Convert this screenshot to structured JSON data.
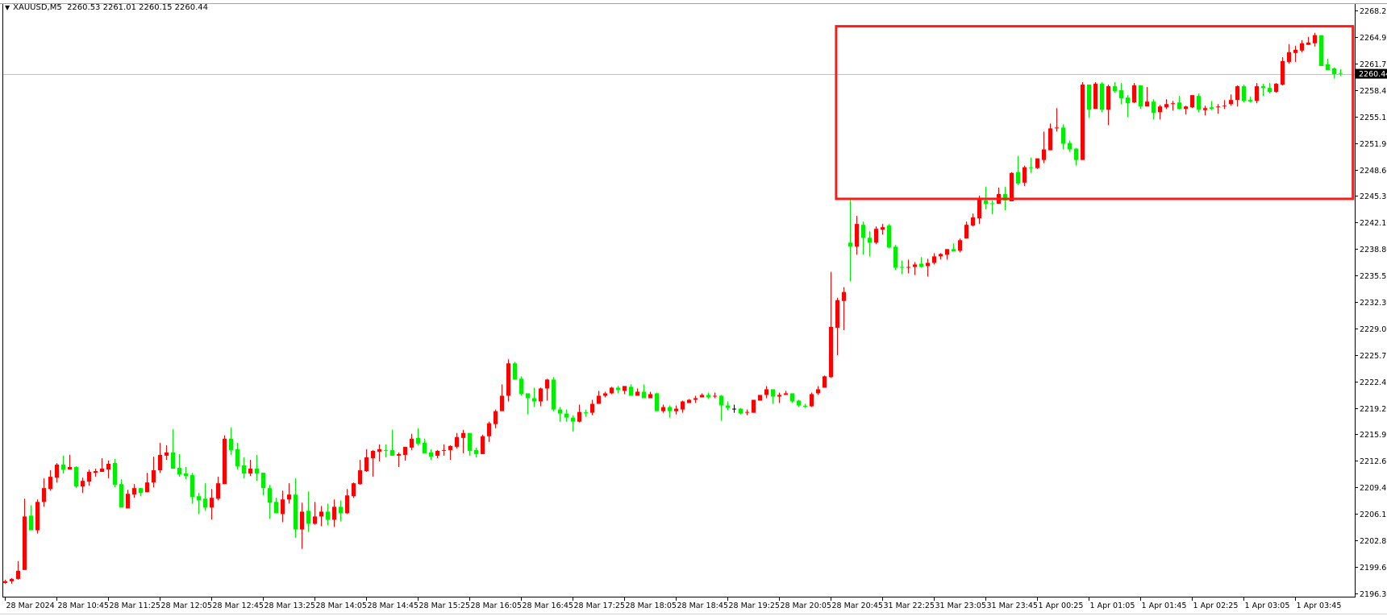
{
  "header": {
    "symbol": "XAUUSD,M5",
    "ohlc": "2260.53 2261.01 2260.15 2260.44",
    "menu_icon": "triangle-down-icon"
  },
  "colors": {
    "bull": "#ff0000",
    "bear": "#00ee00",
    "doji": "#000000",
    "background": "#ffffff",
    "annotation": "#ff1a1a",
    "current_price_line": "#c0c0c0"
  },
  "chart_data": {
    "type": "candlestick",
    "symbol": "XAUUSD",
    "timeframe": "M5",
    "ylim": [
      2196.3,
      2268.25
    ],
    "grid": false,
    "y_ticks": [
      "2268.25",
      "2264.95",
      "2261.70",
      "2258.45",
      "2255.15",
      "2251.90",
      "2248.60",
      "2245.35",
      "2242.10",
      "2238.80",
      "2235.55",
      "2232.30",
      "2229.00",
      "2225.75",
      "2222.45",
      "2219.20",
      "2215.95",
      "2212.65",
      "2209.40",
      "2206.15",
      "2202.85",
      "2199.60",
      "2196.30"
    ],
    "x_ticks": [
      {
        "bar": 0,
        "label": "28 Mar 2024"
      },
      {
        "bar": 8,
        "label": "28 Mar 10:45"
      },
      {
        "bar": 16,
        "label": "28 Mar 11:25"
      },
      {
        "bar": 24,
        "label": "28 Mar 12:05"
      },
      {
        "bar": 32,
        "label": "28 Mar 12:45"
      },
      {
        "bar": 40,
        "label": "28 Mar 13:25"
      },
      {
        "bar": 48,
        "label": "28 Mar 14:05"
      },
      {
        "bar": 56,
        "label": "28 Mar 14:45"
      },
      {
        "bar": 64,
        "label": "28 Mar 15:25"
      },
      {
        "bar": 72,
        "label": "28 Mar 16:05"
      },
      {
        "bar": 80,
        "label": "28 Mar 16:45"
      },
      {
        "bar": 88,
        "label": "28 Mar 17:25"
      },
      {
        "bar": 96,
        "label": "28 Mar 18:05"
      },
      {
        "bar": 104,
        "label": "28 Mar 18:45"
      },
      {
        "bar": 112,
        "label": "28 Mar 19:25"
      },
      {
        "bar": 120,
        "label": "28 Mar 20:05"
      },
      {
        "bar": 128,
        "label": "28 Mar 20:45"
      },
      {
        "bar": 136,
        "label": "31 Mar 22:25"
      },
      {
        "bar": 144,
        "label": "31 Mar 23:05"
      },
      {
        "bar": 152,
        "label": "31 Mar 23:45"
      },
      {
        "bar": 160,
        "label": "1 Apr 00:25"
      },
      {
        "bar": 168,
        "label": "1 Apr 01:05"
      },
      {
        "bar": 176,
        "label": "1 Apr 01:45"
      },
      {
        "bar": 184,
        "label": "1 Apr 02:25"
      },
      {
        "bar": 192,
        "label": "1 Apr 03:05"
      },
      {
        "bar": 200,
        "label": "1 Apr 03:45"
      }
    ],
    "current_price": "2260.44",
    "annotation_rectangle": {
      "bar_from": 128.9,
      "bar_to": 209,
      "price_high": 2266.3,
      "price_low": 2245.0
    },
    "ohlc": [
      [
        2197.6,
        2198.0,
        2197.5,
        2197.8
      ],
      [
        2197.8,
        2198.2,
        2197.5,
        2198.1
      ],
      [
        2198.1,
        2200.3,
        2198.0,
        2199.1
      ],
      [
        2199.2,
        2208.0,
        2199.2,
        2205.8
      ],
      [
        2205.9,
        2207.2,
        2204.1,
        2204.1
      ],
      [
        2204.1,
        2207.9,
        2203.7,
        2207.6
      ],
      [
        2207.6,
        2210.5,
        2207.0,
        2209.3
      ],
      [
        2209.2,
        2211.5,
        2209.0,
        2210.7
      ],
      [
        2210.6,
        2212.4,
        2210.0,
        2212.2
      ],
      [
        2212.2,
        2213.3,
        2211.1,
        2211.6
      ],
      [
        2211.6,
        2213.4,
        2211.6,
        2211.9
      ],
      [
        2211.9,
        2212.0,
        2209.3,
        2209.5
      ],
      [
        2209.5,
        2210.6,
        2208.7,
        2210.2
      ],
      [
        2210.1,
        2211.6,
        2209.6,
        2211.3
      ],
      [
        2211.2,
        2211.7,
        2210.7,
        2211.4
      ],
      [
        2211.3,
        2213.0,
        2211.3,
        2211.7
      ],
      [
        2211.6,
        2212.7,
        2210.5,
        2212.3
      ],
      [
        2212.4,
        2212.9,
        2209.4,
        2209.7
      ],
      [
        2209.8,
        2210.4,
        2206.9,
        2206.9
      ],
      [
        2206.8,
        2209.1,
        2206.8,
        2208.6
      ],
      [
        2208.5,
        2209.8,
        2208.1,
        2209.3
      ],
      [
        2209.3,
        2209.3,
        2208.3,
        2208.7
      ],
      [
        2208.8,
        2211.2,
        2208.8,
        2210.0
      ],
      [
        2210.0,
        2213.2,
        2209.4,
        2211.5
      ],
      [
        2211.5,
        2214.9,
        2211.2,
        2213.4
      ],
      [
        2213.3,
        2214.6,
        2212.8,
        2213.7
      ],
      [
        2213.7,
        2216.6,
        2211.7,
        2211.7
      ],
      [
        2211.8,
        2213.5,
        2210.7,
        2211.0
      ],
      [
        2211.1,
        2211.9,
        2210.4,
        2210.8
      ],
      [
        2210.9,
        2211.2,
        2207.4,
        2208.2
      ],
      [
        2208.3,
        2208.7,
        2206.1,
        2207.8
      ],
      [
        2208.0,
        2209.9,
        2206.5,
        2206.9
      ],
      [
        2206.9,
        2209.2,
        2205.4,
        2208.1
      ],
      [
        2208.0,
        2210.7,
        2207.8,
        2209.9
      ],
      [
        2209.8,
        2215.8,
        2209.8,
        2215.4
      ],
      [
        2215.4,
        2216.8,
        2213.4,
        2214.0
      ],
      [
        2214.1,
        2214.9,
        2211.6,
        2212.0
      ],
      [
        2212.1,
        2213.1,
        2210.5,
        2211.1
      ],
      [
        2211.1,
        2212.8,
        2210.8,
        2211.7
      ],
      [
        2211.7,
        2213.4,
        2210.2,
        2211.1
      ],
      [
        2211.2,
        2211.2,
        2208.4,
        2209.3
      ],
      [
        2209.3,
        2209.7,
        2205.5,
        2207.5
      ],
      [
        2207.6,
        2208.1,
        2206.2,
        2206.2
      ],
      [
        2206.1,
        2209.0,
        2205.1,
        2207.9
      ],
      [
        2207.9,
        2209.9,
        2207.4,
        2208.5
      ],
      [
        2208.5,
        2210.5,
        2203.2,
        2204.2
      ],
      [
        2204.2,
        2207.5,
        2201.8,
        2206.4
      ],
      [
        2206.5,
        2208.9,
        2203.9,
        2204.9
      ],
      [
        2204.9,
        2207.6,
        2204.8,
        2205.8
      ],
      [
        2205.8,
        2207.1,
        2204.6,
        2206.4
      ],
      [
        2206.4,
        2207.4,
        2204.7,
        2205.4
      ],
      [
        2205.4,
        2207.9,
        2204.5,
        2207.0
      ],
      [
        2207.0,
        2207.8,
        2205.2,
        2206.2
      ],
      [
        2206.2,
        2209.2,
        2206.1,
        2208.4
      ],
      [
        2208.3,
        2210.0,
        2208.1,
        2209.9
      ],
      [
        2209.8,
        2212.8,
        2209.7,
        2211.5
      ],
      [
        2211.4,
        2214.1,
        2211.3,
        2213.1
      ],
      [
        2213.0,
        2214.0,
        2210.7,
        2213.9
      ],
      [
        2213.8,
        2214.7,
        2212.6,
        2214.1
      ],
      [
        2214.0,
        2214.7,
        2213.1,
        2213.9
      ],
      [
        2214.0,
        2216.5,
        2213.3,
        2213.3
      ],
      [
        2213.3,
        2213.7,
        2211.9,
        2213.5
      ],
      [
        2213.4,
        2214.4,
        2212.7,
        2214.4
      ],
      [
        2214.3,
        2216.0,
        2214.0,
        2215.4
      ],
      [
        2215.5,
        2216.7,
        2214.6,
        2214.8
      ],
      [
        2214.9,
        2215.4,
        2213.6,
        2213.6
      ],
      [
        2213.7,
        2214.1,
        2212.8,
        2213.2
      ],
      [
        2213.3,
        2214.0,
        2213.0,
        2213.9
      ],
      [
        2213.9,
        2214.7,
        2213.3,
        2214.0
      ],
      [
        2214.0,
        2214.6,
        2212.8,
        2214.5
      ],
      [
        2214.4,
        2216.1,
        2214.2,
        2215.6
      ],
      [
        2215.5,
        2216.5,
        2213.6,
        2216.1
      ],
      [
        2216.1,
        2216.1,
        2213.3,
        2213.9
      ],
      [
        2214.0,
        2214.3,
        2213.1,
        2213.5
      ],
      [
        2213.5,
        2215.9,
        2213.5,
        2215.7
      ],
      [
        2215.7,
        2217.5,
        2215.0,
        2217.3
      ],
      [
        2217.2,
        2219.0,
        2216.7,
        2218.8
      ],
      [
        2218.8,
        2222.1,
        2218.8,
        2220.7
      ],
      [
        2220.7,
        2225.2,
        2220.0,
        2224.7
      ],
      [
        2224.7,
        2224.9,
        2222.7,
        2222.7
      ],
      [
        2222.8,
        2223.1,
        2220.7,
        2220.9
      ],
      [
        2221.0,
        2221.0,
        2218.4,
        2220.4
      ],
      [
        2220.4,
        2221.7,
        2219.3,
        2220.0
      ],
      [
        2220.0,
        2221.7,
        2219.4,
        2221.6
      ],
      [
        2221.6,
        2222.8,
        2220.1,
        2222.7
      ],
      [
        2222.7,
        2223.0,
        2218.8,
        2219.0
      ],
      [
        2219.0,
        2219.3,
        2217.5,
        2218.5
      ],
      [
        2218.5,
        2219.0,
        2217.5,
        2218.0
      ],
      [
        2218.0,
        2218.3,
        2216.3,
        2217.5
      ],
      [
        2217.5,
        2219.6,
        2217.4,
        2218.7
      ],
      [
        2218.65,
        2219.0,
        2218.1,
        2218.6
      ],
      [
        2218.6,
        2220.2,
        2218.3,
        2219.7
      ],
      [
        2219.7,
        2221.3,
        2219.7,
        2220.7
      ],
      [
        2220.7,
        2221.2,
        2220.5,
        2221.0
      ],
      [
        2221.0,
        2221.8,
        2220.9,
        2221.7
      ],
      [
        2221.7,
        2221.9,
        2221.0,
        2221.4
      ],
      [
        2221.3,
        2221.9,
        2220.9,
        2221.9
      ],
      [
        2221.8,
        2222.1,
        2220.7,
        2220.7
      ],
      [
        2220.7,
        2221.6,
        2220.7,
        2221.2
      ],
      [
        2221.2,
        2222.1,
        2220.4,
        2220.4
      ],
      [
        2220.4,
        2221.2,
        2220.4,
        2220.9
      ],
      [
        2221.0,
        2221.1,
        2218.8,
        2218.8
      ],
      [
        2218.8,
        2219.6,
        2218.6,
        2219.3
      ],
      [
        2219.3,
        2219.5,
        2218.0,
        2218.8
      ],
      [
        2218.8,
        2219.5,
        2218.4,
        2219.1
      ],
      [
        2219.0,
        2220.1,
        2218.6,
        2220.0
      ],
      [
        2219.8,
        2220.3,
        2219.8,
        2220.2
      ],
      [
        2220.2,
        2220.7,
        2219.8,
        2220.4
      ],
      [
        2220.5,
        2221.0,
        2220.5,
        2220.8
      ],
      [
        2220.8,
        2221.1,
        2220.3,
        2220.5
      ],
      [
        2220.6,
        2221.1,
        2220.4,
        2220.7
      ],
      [
        2220.7,
        2220.8,
        2217.6,
        2219.5
      ],
      [
        2219.5,
        2220.0,
        2218.9,
        2219.2
      ],
      [
        2219.1,
        2219.6,
        2218.6,
        2219.1
      ],
      [
        2219.1,
        2219.2,
        2218.4,
        2218.5
      ],
      [
        2218.6,
        2219.0,
        2218.3,
        2218.7
      ],
      [
        2218.6,
        2220.2,
        2218.6,
        2220.2
      ],
      [
        2220.1,
        2220.8,
        2220.1,
        2220.8
      ],
      [
        2220.8,
        2221.9,
        2220.4,
        2221.5
      ],
      [
        2221.5,
        2221.5,
        2219.7,
        2220.6
      ],
      [
        2220.6,
        2221.1,
        2219.8,
        2220.8
      ],
      [
        2220.8,
        2221.3,
        2220.8,
        2221.0
      ],
      [
        2221.0,
        2221.0,
        2219.8,
        2220.0
      ],
      [
        2220.1,
        2220.2,
        2219.3,
        2219.5
      ],
      [
        2219.45,
        2219.7,
        2219.2,
        2219.4
      ],
      [
        2219.4,
        2221.1,
        2219.3,
        2220.9
      ],
      [
        2221.0,
        2221.9,
        2220.8,
        2221.5
      ],
      [
        2221.7,
        2223.2,
        2221.7,
        2223.1
      ],
      [
        2223.0,
        2236.0,
        2222.9,
        2229.2
      ],
      [
        2229.1,
        2232.8,
        2225.7,
        2232.5
      ],
      [
        2232.4,
        2234.1,
        2228.8,
        2233.5
      ],
      [
        2239.6,
        2245.1,
        2234.8,
        2239.1
      ],
      [
        2239.1,
        2242.9,
        2238.1,
        2241.9
      ],
      [
        2241.8,
        2242.2,
        2238.1,
        2240.2
      ],
      [
        2240.2,
        2241.0,
        2237.9,
        2239.6
      ],
      [
        2239.6,
        2241.6,
        2239.4,
        2241.3
      ],
      [
        2241.2,
        2241.9,
        2240.6,
        2241.5
      ],
      [
        2241.7,
        2241.9,
        2238.9,
        2239.0
      ],
      [
        2239.1,
        2239.3,
        2236.2,
        2236.5
      ],
      [
        2236.6,
        2237.4,
        2235.7,
        2236.5
      ],
      [
        2236.5,
        2237.5,
        2235.8,
        2236.6
      ],
      [
        2236.6,
        2237.2,
        2235.6,
        2236.9
      ],
      [
        2237.0,
        2237.8,
        2236.5,
        2236.6
      ],
      [
        2236.7,
        2237.6,
        2235.4,
        2237.1
      ],
      [
        2237.1,
        2238.3,
        2236.9,
        2237.9
      ],
      [
        2237.9,
        2238.3,
        2237.5,
        2238.2
      ],
      [
        2238.1,
        2238.8,
        2237.5,
        2238.8
      ],
      [
        2238.8,
        2239.5,
        2238.5,
        2238.5
      ],
      [
        2238.6,
        2240.1,
        2238.4,
        2239.9
      ],
      [
        2240.1,
        2242.2,
        2240.1,
        2241.8
      ],
      [
        2241.7,
        2243.2,
        2241.6,
        2242.7
      ],
      [
        2242.6,
        2245.4,
        2241.9,
        2244.9
      ],
      [
        2244.8,
        2246.5,
        2243.7,
        2244.4
      ],
      [
        2244.45,
        2244.8,
        2243.1,
        2244.4
      ],
      [
        2244.4,
        2246.4,
        2244.4,
        2245.6
      ],
      [
        2245.6,
        2246.5,
        2243.6,
        2244.8
      ],
      [
        2244.7,
        2248.3,
        2244.7,
        2248.2
      ],
      [
        2248.3,
        2250.3,
        2246.7,
        2246.9
      ],
      [
        2247.0,
        2249.1,
        2246.6,
        2248.9
      ],
      [
        2248.9,
        2250.1,
        2248.2,
        2248.8
      ],
      [
        2248.8,
        2250.0,
        2248.7,
        2250.0
      ],
      [
        2249.8,
        2253.3,
        2249.4,
        2251.1
      ],
      [
        2251.0,
        2254.3,
        2251.0,
        2253.7
      ],
      [
        2253.7,
        2256.2,
        2253.3,
        2253.8
      ],
      [
        2253.8,
        2254.2,
        2251.1,
        2251.8
      ],
      [
        2251.9,
        2252.2,
        2250.8,
        2251.1
      ],
      [
        2251.2,
        2251.3,
        2249.1,
        2249.8
      ],
      [
        2249.8,
        2259.4,
        2249.8,
        2259.1
      ],
      [
        2259.1,
        2259.1,
        2255.0,
        2256.0
      ],
      [
        2256.1,
        2259.4,
        2256.1,
        2259.2
      ],
      [
        2259.2,
        2259.4,
        2255.7,
        2256.0
      ],
      [
        2256.0,
        2259.1,
        2254.1,
        2258.9
      ],
      [
        2258.9,
        2259.4,
        2258.1,
        2258.3
      ],
      [
        2258.4,
        2259.3,
        2256.7,
        2257.4
      ],
      [
        2257.5,
        2257.8,
        2255.1,
        2256.8
      ],
      [
        2256.9,
        2259.3,
        2256.8,
        2259.0
      ],
      [
        2259.0,
        2259.0,
        2256.1,
        2256.4
      ],
      [
        2256.4,
        2258.8,
        2256.4,
        2257.0
      ],
      [
        2257.0,
        2257.3,
        2254.8,
        2255.6
      ],
      [
        2255.7,
        2256.6,
        2254.8,
        2256.4
      ],
      [
        2256.3,
        2257.3,
        2256.1,
        2256.7
      ],
      [
        2256.7,
        2257.1,
        2255.9,
        2256.8
      ],
      [
        2256.9,
        2257.7,
        2256.0,
        2256.1
      ],
      [
        2256.1,
        2256.5,
        2255.4,
        2256.4
      ],
      [
        2256.3,
        2257.8,
        2256.2,
        2257.8
      ],
      [
        2257.7,
        2258.0,
        2255.7,
        2256.0
      ],
      [
        2255.96,
        2256.5,
        2255.3,
        2256.2
      ],
      [
        2256.3,
        2257.1,
        2255.96,
        2256.1
      ],
      [
        2256.3,
        2256.7,
        2255.5,
        2256.4
      ],
      [
        2256.4,
        2257.2,
        2256.1,
        2256.5
      ],
      [
        2256.7,
        2257.9,
        2256.5,
        2257.2
      ],
      [
        2257.2,
        2259.0,
        2256.4,
        2258.9
      ],
      [
        2258.9,
        2259.1,
        2256.9,
        2257.1
      ],
      [
        2257.2,
        2257.6,
        2256.9,
        2257.0
      ],
      [
        2257.1,
        2259.3,
        2256.8,
        2258.9
      ],
      [
        2258.9,
        2259.2,
        2257.7,
        2258.7
      ],
      [
        2258.7,
        2259.3,
        2258.0,
        2258.2
      ],
      [
        2258.2,
        2259.3,
        2258.1,
        2259.2
      ],
      [
        2259.1,
        2262.5,
        2259.0,
        2262.0
      ],
      [
        2261.9,
        2264.1,
        2261.7,
        2263.1
      ],
      [
        2263.0,
        2263.9,
        2261.9,
        2263.4
      ],
      [
        2263.3,
        2264.6,
        2263.1,
        2264.2
      ],
      [
        2264.0,
        2265.0,
        2264.0,
        2264.3
      ],
      [
        2264.2,
        2265.5,
        2263.8,
        2265.2
      ],
      [
        2265.2,
        2265.2,
        2261.4,
        2261.4
      ],
      [
        2261.6,
        2262.3,
        2260.9,
        2260.9
      ],
      [
        2261.1,
        2261.2,
        2259.9,
        2260.4
      ],
      [
        2260.53,
        2261.01,
        2260.15,
        2260.44
      ]
    ]
  }
}
